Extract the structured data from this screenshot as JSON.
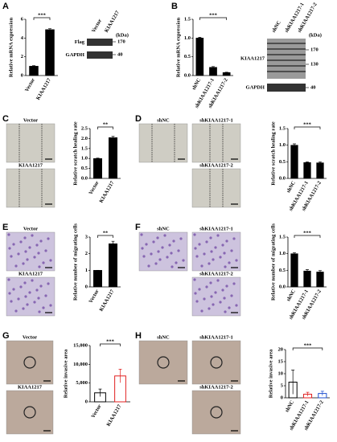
{
  "panels": [
    {
      "label": "A",
      "blot": {
        "lanes": [
          "Vector",
          "KIAA1217"
        ],
        "rows": [
          "Flag",
          "GAPDH"
        ],
        "unit": "(kDa)",
        "markers": [
          "170",
          "40"
        ]
      }
    },
    {
      "label": "B",
      "blot": {
        "lanes": [
          "shNC",
          "shKIAA1217-1",
          "shKIAA1217-2"
        ],
        "rows": [
          "KIAA1217",
          "GAPDH"
        ],
        "unit": "(kDa)",
        "markers": [
          "170",
          "130",
          "40"
        ]
      }
    },
    {
      "label": "C",
      "images": [
        "Vector",
        "KIAA1217"
      ]
    },
    {
      "label": "D",
      "images": [
        "shNC",
        "shKIAA1217-1",
        "shKIAA1217-2"
      ]
    },
    {
      "label": "E",
      "images": [
        "Vector",
        "KIAA1217"
      ]
    },
    {
      "label": "F",
      "images": [
        "shNC",
        "shKIAA1217-1",
        "shKIAA1217-2"
      ]
    },
    {
      "label": "G",
      "images": [
        "Vector",
        "KIAA1217"
      ]
    },
    {
      "label": "H",
      "images": [
        "shNC",
        "shKIAA1217-1",
        "shKIAA1217-2"
      ]
    }
  ],
  "chart_data": [
    {
      "type": "bar",
      "ylabel": "Relative mRNA expression",
      "categories": [
        "Vector",
        "KIAA1217"
      ],
      "values": [
        1,
        4.9
      ],
      "errors": [
        0.05,
        0.1
      ],
      "colors": [
        "#000000",
        "#000000"
      ],
      "hollow": false,
      "ylim": [
        0,
        6
      ],
      "yticks": [
        0,
        2,
        4,
        6
      ],
      "significance": "***"
    },
    {
      "type": "bar",
      "ylabel": "Relative mRNA expression",
      "categories": [
        "shNC",
        "shKIAA1217-1",
        "shKIAA1217-2"
      ],
      "values": [
        1,
        0.22,
        0.08
      ],
      "errors": [
        0.02,
        0.02,
        0.01
      ],
      "colors": [
        "#000000",
        "#000000",
        "#000000"
      ],
      "hollow": false,
      "ylim": [
        0,
        1.5
      ],
      "yticks": [
        {
          "value": 0,
          "label": "0.0"
        },
        {
          "value": 0.5,
          "label": "0.5"
        },
        {
          "value": 1,
          "label": "1.0"
        },
        {
          "value": 1.5,
          "label": "1.5"
        }
      ],
      "significance": "***"
    },
    {
      "type": "bar",
      "ylabel": "Relative scratch healing rate",
      "categories": [
        "Vector",
        "KIAA1217"
      ],
      "values": [
        1,
        2.05
      ],
      "errors": [
        0.02,
        0.06
      ],
      "colors": [
        "#000000",
        "#000000"
      ],
      "hollow": false,
      "ylim": [
        0,
        2.5
      ],
      "yticks": [
        {
          "value": 0,
          "label": "0.0"
        },
        {
          "value": 0.5,
          "label": "0.5"
        },
        {
          "value": 1,
          "label": "1.0"
        },
        {
          "value": 1.5,
          "label": "1.5"
        },
        {
          "value": 2,
          "label": "2.0"
        },
        {
          "value": 2.5,
          "label": "2.5"
        }
      ],
      "significance": "**"
    },
    {
      "type": "bar",
      "ylabel": "Relative scratch healing rate",
      "categories": [
        "shNC",
        "shKIAA1217-1",
        "shKIAA1217-2"
      ],
      "values": [
        1,
        0.48,
        0.47
      ],
      "errors": [
        0.04,
        0.02,
        0.03
      ],
      "colors": [
        "#000000",
        "#000000",
        "#000000"
      ],
      "hollow": false,
      "ylim": [
        0,
        1.5
      ],
      "yticks": [
        {
          "value": 0,
          "label": "0.0"
        },
        {
          "value": 0.5,
          "label": "0.5"
        },
        {
          "value": 1,
          "label": "1.0"
        },
        {
          "value": 1.5,
          "label": "1.5"
        }
      ],
      "significance": "***"
    },
    {
      "type": "bar",
      "ylabel": "Relative number of migrating cells",
      "categories": [
        "Vector",
        "KIAA1217"
      ],
      "values": [
        1,
        2.6
      ],
      "errors": [
        0,
        0.15
      ],
      "colors": [
        "#000000",
        "#000000"
      ],
      "hollow": false,
      "ylim": [
        0,
        3
      ],
      "yticks": [
        0,
        1,
        2,
        3
      ],
      "significance": "**"
    },
    {
      "type": "bar",
      "ylabel": "Relative number of migrating cells",
      "categories": [
        "shNC",
        "shKIAA1217-1",
        "shKIAA1217-2"
      ],
      "values": [
        1,
        0.48,
        0.45
      ],
      "errors": [
        0.03,
        0.04,
        0.04
      ],
      "colors": [
        "#000000",
        "#000000",
        "#000000"
      ],
      "hollow": false,
      "ylim": [
        0,
        1.5
      ],
      "yticks": [
        {
          "value": 0,
          "label": "0.0"
        },
        {
          "value": 0.5,
          "label": "0.5"
        },
        {
          "value": 1,
          "label": "1.0"
        },
        {
          "value": 1.5,
          "label": "1.5"
        }
      ],
      "significance": "***"
    },
    {
      "type": "bar",
      "ylabel": "Relative invasive area",
      "categories": [
        "Vector",
        "KIAA1217"
      ],
      "values": [
        2400,
        6900
      ],
      "errors": [
        1000,
        1800
      ],
      "colors": [
        "#000000",
        "#e02020"
      ],
      "hollow": true,
      "ylim": [
        0,
        15000
      ],
      "yticks": [
        0,
        {
          "value": 5000,
          "label": "5,000"
        },
        {
          "value": 10000,
          "label": "10,000"
        },
        {
          "value": 15000,
          "label": "15,000"
        }
      ],
      "significance": "***"
    },
    {
      "type": "bar",
      "ylabel": "Relative invasive area",
      "categories": [
        "shNC",
        "shKIAA1217-1",
        "shKIAA1217-2"
      ],
      "values": [
        6.5,
        1.5,
        1.8
      ],
      "errors": [
        5,
        0.8,
        0.9
      ],
      "colors": [
        "#000000",
        "#e02020",
        "#2050d0"
      ],
      "hollow": true,
      "ylim": [
        0,
        20
      ],
      "yticks": [
        0,
        5,
        10,
        15,
        20
      ],
      "significance": "***"
    }
  ]
}
